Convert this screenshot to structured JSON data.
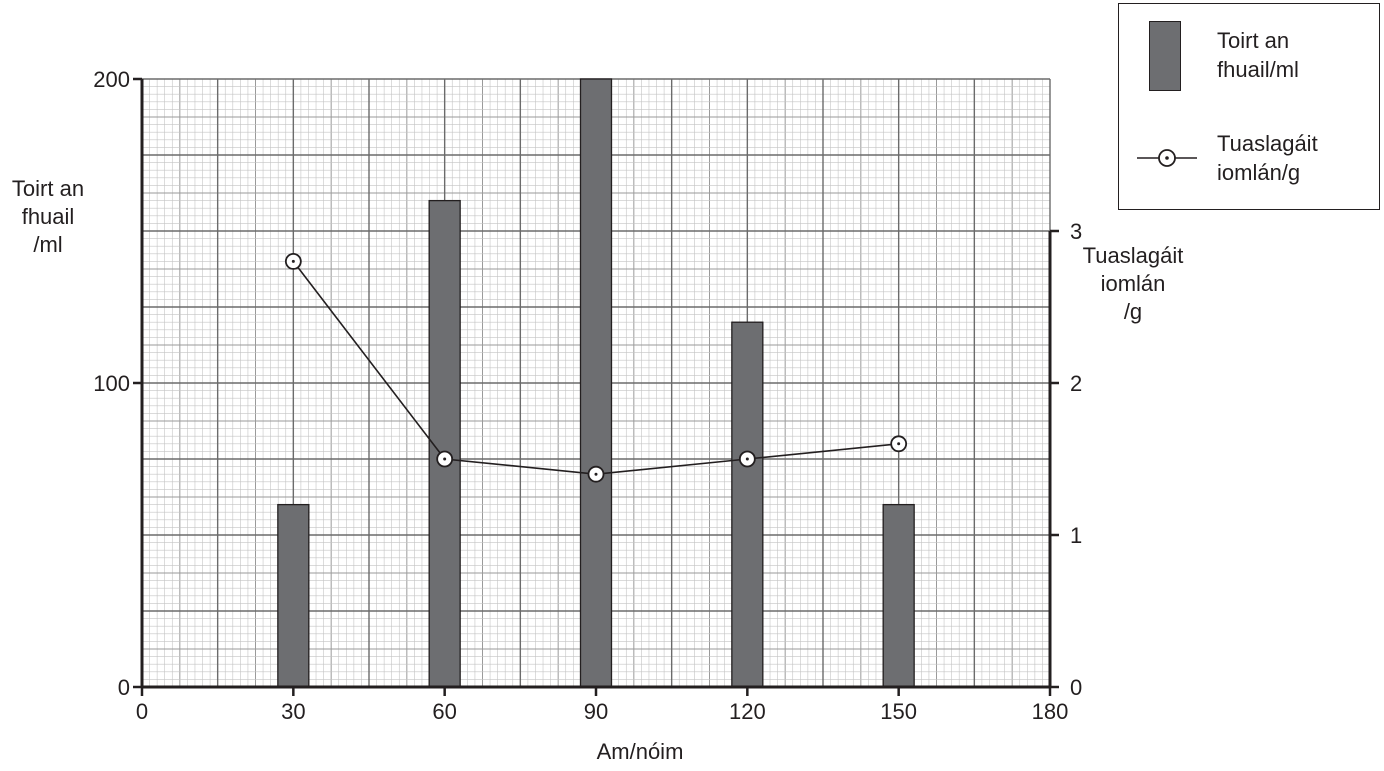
{
  "chart_data": {
    "type": "bar+line",
    "x_ticks": [
      0,
      30,
      60,
      90,
      120,
      150,
      180
    ],
    "xlim": [
      0,
      180
    ],
    "xlabel": "Am/nóim",
    "y_left": {
      "label_lines": [
        "Toirt an",
        "fhuail",
        "/ml"
      ],
      "ticks": [
        0,
        100,
        200
      ],
      "ylim": [
        0,
        200
      ]
    },
    "y_right": {
      "label_lines": [
        "Tuaslagáit",
        "iomlán",
        "/g"
      ],
      "ticks": [
        0,
        1,
        2,
        3
      ],
      "ylim": [
        0,
        4
      ]
    },
    "series": [
      {
        "name_lines": [
          "Toirt an",
          "fhuail/ml"
        ],
        "kind": "bar",
        "axis": "left",
        "x": [
          30,
          60,
          90,
          120,
          150
        ],
        "values": [
          60,
          160,
          200,
          120,
          60
        ],
        "color": "#6d6e71"
      },
      {
        "name_lines": [
          "Tuaslagáit",
          "iomlán/g"
        ],
        "kind": "line",
        "axis": "right",
        "marker": "circle-dot",
        "x": [
          30,
          60,
          90,
          120,
          150
        ],
        "values": [
          2.8,
          1.5,
          1.4,
          1.5,
          1.6
        ],
        "color": "#231f20"
      }
    ],
    "grid": true,
    "legend_position": "top-right"
  }
}
